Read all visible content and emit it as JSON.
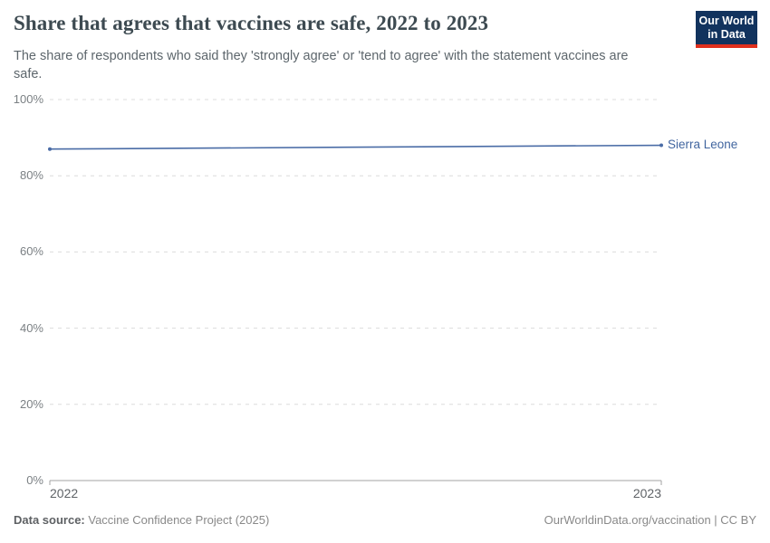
{
  "header": {
    "title": "Share that agrees that vaccines are safe, 2022 to 2023",
    "subtitle": "The share of respondents who said they 'strongly agree' or 'tend to agree' with the statement vaccines are safe.",
    "logo": {
      "line1": "Our World",
      "line2": "in Data",
      "bg_color": "#12335e",
      "accent_color": "#e0301e"
    }
  },
  "chart_data": {
    "type": "line",
    "title": "Share that agrees that vaccines are safe, 2022 to 2023",
    "x": [
      2022,
      2023
    ],
    "series": [
      {
        "name": "Sierra Leone",
        "values": [
          87,
          88
        ],
        "color": "#4a6ca6",
        "label_color": "#41659f"
      }
    ],
    "xlabel": "",
    "ylabel": "",
    "ylim": [
      0,
      100
    ],
    "yticks": [
      0,
      20,
      40,
      60,
      80,
      100
    ],
    "ytick_suffix": "%",
    "xticks": [
      2022,
      2023
    ],
    "grid": "horizontal-dashed",
    "grid_color": "#dcdcdc",
    "axis_color": "#a3a3a3",
    "legend_position": "end-of-line-label"
  },
  "footer": {
    "source_label": "Data source:",
    "source_value": "Vaccine Confidence Project (2025)",
    "right_text": "OurWorldinData.org/vaccination | CC BY"
  }
}
